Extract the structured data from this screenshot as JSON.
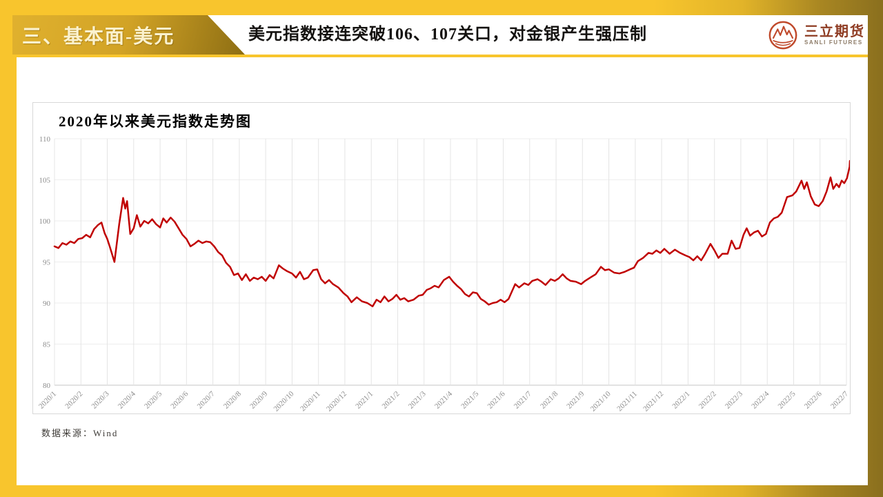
{
  "slide": {
    "section_title": "三、基本面-美元",
    "headline": "美元指数接连突破106、107关口，对金银产生强压制",
    "logo": {
      "name_cn": "三立期货",
      "name_en": "SANLI FUTURES"
    },
    "source_note": "数据来源：Wind"
  },
  "colors": {
    "slide_yellow": "#F8C52D",
    "dark_gold": "#8A6F1E",
    "tab_gold": "#D2A326",
    "line_red": "#C00000",
    "logo_red": "#C04A2C",
    "axis_gray": "#8C8C8C"
  },
  "chart_data": {
    "type": "line",
    "title": "2020年以来美元指数走势图",
    "xlabel": "",
    "ylabel": "",
    "ylim": [
      80,
      110
    ],
    "y_ticks": [
      80,
      85,
      90,
      95,
      100,
      105,
      110
    ],
    "grid": true,
    "legend": "none",
    "x_tick_labels": [
      "2020/1",
      "2020/2",
      "2020/3",
      "2020/4",
      "2020/5",
      "2020/6",
      "2020/7",
      "2020/8",
      "2020/9",
      "2020/10",
      "2020/11",
      "2020/12",
      "2021/1",
      "2021/2",
      "2021/3",
      "2021/4",
      "2021/5",
      "2021/6",
      "2021/7",
      "2021/8",
      "2021/9",
      "2021/10",
      "2021/11",
      "2021/12",
      "2022/1",
      "2022/2",
      "2022/3",
      "2022/4",
      "2022/5",
      "2022/6",
      "2022/7"
    ],
    "series": [
      {
        "name": "美元指数",
        "color": "#C00000",
        "x_unit": "months_since_2020_01",
        "points": [
          [
            0,
            96.9
          ],
          [
            0.15,
            96.7
          ],
          [
            0.3,
            97.3
          ],
          [
            0.45,
            97.1
          ],
          [
            0.6,
            97.5
          ],
          [
            0.75,
            97.3
          ],
          [
            0.9,
            97.8
          ],
          [
            1.05,
            97.9
          ],
          [
            1.2,
            98.3
          ],
          [
            1.35,
            98.0
          ],
          [
            1.5,
            99.0
          ],
          [
            1.65,
            99.5
          ],
          [
            1.78,
            99.8
          ],
          [
            1.9,
            98.5
          ],
          [
            2.0,
            97.8
          ],
          [
            2.1,
            96.8
          ],
          [
            2.27,
            95.0
          ],
          [
            2.45,
            99.6
          ],
          [
            2.6,
            102.8
          ],
          [
            2.68,
            101.5
          ],
          [
            2.75,
            102.4
          ],
          [
            2.87,
            98.4
          ],
          [
            3.0,
            99.1
          ],
          [
            3.12,
            100.7
          ],
          [
            3.25,
            99.3
          ],
          [
            3.4,
            100.0
          ],
          [
            3.55,
            99.7
          ],
          [
            3.7,
            100.2
          ],
          [
            3.85,
            99.6
          ],
          [
            4.0,
            99.2
          ],
          [
            4.12,
            100.3
          ],
          [
            4.25,
            99.8
          ],
          [
            4.4,
            100.4
          ],
          [
            4.55,
            99.9
          ],
          [
            4.7,
            99.1
          ],
          [
            4.85,
            98.3
          ],
          [
            5.0,
            97.8
          ],
          [
            5.15,
            96.9
          ],
          [
            5.3,
            97.2
          ],
          [
            5.45,
            97.6
          ],
          [
            5.6,
            97.3
          ],
          [
            5.75,
            97.5
          ],
          [
            5.9,
            97.4
          ],
          [
            6.05,
            96.9
          ],
          [
            6.2,
            96.2
          ],
          [
            6.35,
            95.8
          ],
          [
            6.5,
            94.9
          ],
          [
            6.65,
            94.4
          ],
          [
            6.8,
            93.4
          ],
          [
            6.95,
            93.6
          ],
          [
            7.1,
            92.8
          ],
          [
            7.25,
            93.5
          ],
          [
            7.4,
            92.7
          ],
          [
            7.55,
            93.1
          ],
          [
            7.7,
            92.9
          ],
          [
            7.85,
            93.2
          ],
          [
            8.0,
            92.7
          ],
          [
            8.15,
            93.4
          ],
          [
            8.3,
            93.0
          ],
          [
            8.5,
            94.6
          ],
          [
            8.65,
            94.2
          ],
          [
            8.8,
            93.9
          ],
          [
            9.0,
            93.6
          ],
          [
            9.15,
            93.1
          ],
          [
            9.3,
            93.8
          ],
          [
            9.45,
            92.9
          ],
          [
            9.6,
            93.1
          ],
          [
            9.8,
            94.0
          ],
          [
            9.95,
            94.1
          ],
          [
            10.1,
            92.9
          ],
          [
            10.25,
            92.4
          ],
          [
            10.4,
            92.8
          ],
          [
            10.55,
            92.3
          ],
          [
            10.75,
            91.9
          ],
          [
            10.95,
            91.2
          ],
          [
            11.1,
            90.8
          ],
          [
            11.25,
            90.1
          ],
          [
            11.45,
            90.7
          ],
          [
            11.65,
            90.2
          ],
          [
            11.85,
            90.0
          ],
          [
            12.05,
            89.6
          ],
          [
            12.2,
            90.4
          ],
          [
            12.35,
            90.1
          ],
          [
            12.5,
            90.8
          ],
          [
            12.65,
            90.2
          ],
          [
            12.8,
            90.5
          ],
          [
            12.95,
            91.0
          ],
          [
            13.1,
            90.4
          ],
          [
            13.25,
            90.6
          ],
          [
            13.4,
            90.2
          ],
          [
            13.6,
            90.4
          ],
          [
            13.8,
            90.9
          ],
          [
            13.95,
            91.0
          ],
          [
            14.1,
            91.6
          ],
          [
            14.25,
            91.8
          ],
          [
            14.4,
            92.1
          ],
          [
            14.55,
            91.9
          ],
          [
            14.75,
            92.8
          ],
          [
            14.95,
            93.2
          ],
          [
            15.1,
            92.6
          ],
          [
            15.25,
            92.1
          ],
          [
            15.4,
            91.7
          ],
          [
            15.55,
            91.1
          ],
          [
            15.7,
            90.8
          ],
          [
            15.85,
            91.3
          ],
          [
            16.0,
            91.2
          ],
          [
            16.15,
            90.5
          ],
          [
            16.3,
            90.2
          ],
          [
            16.45,
            89.8
          ],
          [
            16.6,
            90.0
          ],
          [
            16.75,
            90.1
          ],
          [
            16.9,
            90.4
          ],
          [
            17.05,
            90.1
          ],
          [
            17.2,
            90.5
          ],
          [
            17.45,
            92.3
          ],
          [
            17.6,
            91.9
          ],
          [
            17.8,
            92.4
          ],
          [
            17.95,
            92.2
          ],
          [
            18.1,
            92.7
          ],
          [
            18.3,
            92.9
          ],
          [
            18.45,
            92.6
          ],
          [
            18.6,
            92.2
          ],
          [
            18.8,
            92.9
          ],
          [
            18.95,
            92.7
          ],
          [
            19.1,
            93.0
          ],
          [
            19.25,
            93.5
          ],
          [
            19.4,
            93.0
          ],
          [
            19.55,
            92.7
          ],
          [
            19.75,
            92.6
          ],
          [
            19.95,
            92.3
          ],
          [
            20.1,
            92.7
          ],
          [
            20.3,
            93.1
          ],
          [
            20.5,
            93.5
          ],
          [
            20.7,
            94.4
          ],
          [
            20.85,
            94.0
          ],
          [
            21.0,
            94.1
          ],
          [
            21.2,
            93.7
          ],
          [
            21.4,
            93.6
          ],
          [
            21.6,
            93.8
          ],
          [
            21.8,
            94.1
          ],
          [
            21.95,
            94.3
          ],
          [
            22.1,
            95.1
          ],
          [
            22.3,
            95.5
          ],
          [
            22.5,
            96.1
          ],
          [
            22.65,
            96.0
          ],
          [
            22.8,
            96.4
          ],
          [
            22.95,
            96.1
          ],
          [
            23.1,
            96.6
          ],
          [
            23.3,
            96.0
          ],
          [
            23.5,
            96.5
          ],
          [
            23.7,
            96.1
          ],
          [
            23.9,
            95.8
          ],
          [
            24.05,
            95.6
          ],
          [
            24.2,
            95.2
          ],
          [
            24.35,
            95.7
          ],
          [
            24.5,
            95.2
          ],
          [
            24.65,
            96.0
          ],
          [
            24.85,
            97.2
          ],
          [
            25.0,
            96.4
          ],
          [
            25.15,
            95.5
          ],
          [
            25.3,
            96.0
          ],
          [
            25.5,
            96.0
          ],
          [
            25.65,
            97.6
          ],
          [
            25.8,
            96.6
          ],
          [
            25.95,
            96.7
          ],
          [
            26.1,
            98.3
          ],
          [
            26.22,
            99.1
          ],
          [
            26.35,
            98.2
          ],
          [
            26.5,
            98.6
          ],
          [
            26.65,
            98.8
          ],
          [
            26.8,
            98.1
          ],
          [
            26.95,
            98.4
          ],
          [
            27.1,
            99.8
          ],
          [
            27.25,
            100.3
          ],
          [
            27.4,
            100.5
          ],
          [
            27.55,
            101.0
          ],
          [
            27.75,
            102.9
          ],
          [
            27.95,
            103.1
          ],
          [
            28.1,
            103.6
          ],
          [
            28.3,
            104.9
          ],
          [
            28.4,
            103.9
          ],
          [
            28.5,
            104.7
          ],
          [
            28.65,
            103.0
          ],
          [
            28.8,
            102.0
          ],
          [
            28.95,
            101.8
          ],
          [
            29.1,
            102.4
          ],
          [
            29.25,
            103.6
          ],
          [
            29.4,
            105.3
          ],
          [
            29.5,
            103.9
          ],
          [
            29.62,
            104.5
          ],
          [
            29.72,
            104.1
          ],
          [
            29.82,
            104.9
          ],
          [
            29.92,
            104.6
          ],
          [
            30.02,
            105.2
          ],
          [
            30.12,
            106.6
          ],
          [
            30.2,
            107.3
          ]
        ]
      }
    ]
  }
}
